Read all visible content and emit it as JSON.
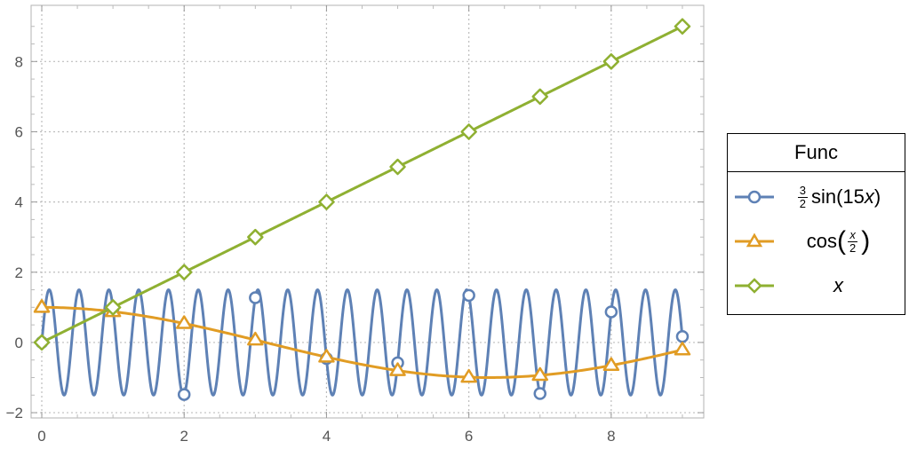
{
  "chart_data": {
    "type": "line",
    "title": "",
    "xlabel": "",
    "ylabel": "",
    "xlim": [
      -0.15,
      9.3
    ],
    "ylim": [
      -2.15,
      9.6
    ],
    "x_ticks": [
      0,
      2,
      4,
      6,
      8
    ],
    "x_tick_labels": [
      "0",
      "2",
      "4",
      "6",
      "8"
    ],
    "y_ticks": [
      -2,
      0,
      2,
      4,
      6,
      8
    ],
    "y_tick_labels": [
      "−2",
      "0",
      "2",
      "4",
      "6",
      "8"
    ],
    "grid": true,
    "legend_position": "right",
    "legend_title": "Func",
    "series": [
      {
        "name": "3/2 sin(15 x)",
        "expression": "1.5*sin(15*x)",
        "color": "#5e81b5",
        "marker": "circle",
        "marker_x": [
          0,
          1,
          2,
          3,
          4,
          5,
          6,
          7,
          8,
          9
        ],
        "marker_y": [
          0,
          0.975,
          -1.482,
          1.275,
          -0.457,
          -0.58,
          1.341,
          -1.455,
          0.871,
          0.168
        ]
      },
      {
        "name": "cos(x/2)",
        "expression": "cos(x/2)",
        "color": "#e19c24",
        "marker": "triangle",
        "marker_x": [
          0,
          1,
          2,
          3,
          4,
          5,
          6,
          7,
          8,
          9
        ],
        "marker_y": [
          1,
          0.878,
          0.54,
          0.071,
          -0.416,
          -0.801,
          -0.99,
          -0.936,
          -0.654,
          -0.211
        ]
      },
      {
        "name": "x",
        "expression": "x",
        "color": "#8fb032",
        "marker": "diamond",
        "marker_x": [
          0,
          1,
          2,
          3,
          4,
          5,
          6,
          7,
          8,
          9
        ],
        "marker_y": [
          0,
          1,
          2,
          3,
          4,
          5,
          6,
          7,
          8,
          9
        ]
      }
    ]
  },
  "legend": {
    "title": "Func",
    "items": [
      {
        "coef_num": "3",
        "coef_den": "2",
        "fn": "sin(15 ",
        "var": "x",
        "close": ")"
      },
      {
        "fn": "cos",
        "var": "x",
        "den": "2"
      },
      {
        "var": "x"
      }
    ]
  }
}
